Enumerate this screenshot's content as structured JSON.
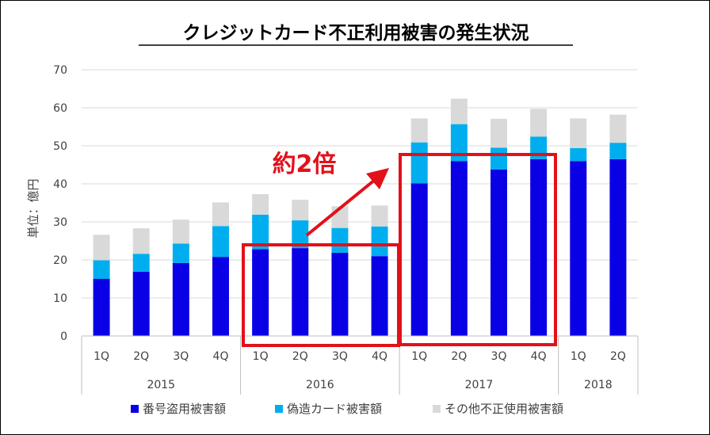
{
  "chart_data": {
    "type": "bar",
    "stacked": true,
    "title": "クレジットカード不正利用被害の発生状況",
    "ylabel": "単位：億円",
    "xlabel": "",
    "ylim": [
      0,
      70
    ],
    "yticks": [
      0,
      10,
      20,
      30,
      40,
      50,
      60,
      70
    ],
    "grid": true,
    "legend_position": "bottom",
    "categories": [
      "1Q",
      "2Q",
      "3Q",
      "4Q",
      "1Q",
      "2Q",
      "3Q",
      "4Q",
      "1Q",
      "2Q",
      "3Q",
      "4Q",
      "1Q",
      "2Q"
    ],
    "year_groups": [
      {
        "label": "2015",
        "count": 4
      },
      {
        "label": "2016",
        "count": 4
      },
      {
        "label": "2017",
        "count": 4
      },
      {
        "label": "2018",
        "count": 2
      }
    ],
    "series": [
      {
        "name": "番号盗用被害額",
        "color": "#0a00e6",
        "values": [
          15.0,
          16.9,
          19.2,
          20.8,
          22.8,
          23.1,
          21.9,
          21.0,
          40.1,
          46.0,
          43.8,
          46.5,
          46.0,
          46.5
        ]
      },
      {
        "name": "偽造カード被害額",
        "color": "#00aeef",
        "values": [
          4.9,
          4.7,
          5.1,
          8.1,
          9.1,
          7.3,
          6.5,
          7.8,
          10.8,
          9.7,
          5.7,
          5.9,
          3.4,
          4.3
        ]
      },
      {
        "name": "その他不正使用被害額",
        "color": "#d9d9d9",
        "values": [
          6.7,
          6.7,
          6.3,
          6.2,
          5.4,
          5.4,
          5.7,
          5.5,
          6.3,
          6.7,
          7.6,
          7.3,
          7.8,
          7.4
        ]
      }
    ],
    "annotations": [
      {
        "text": "約2倍",
        "color": "#e3101a"
      }
    ]
  }
}
